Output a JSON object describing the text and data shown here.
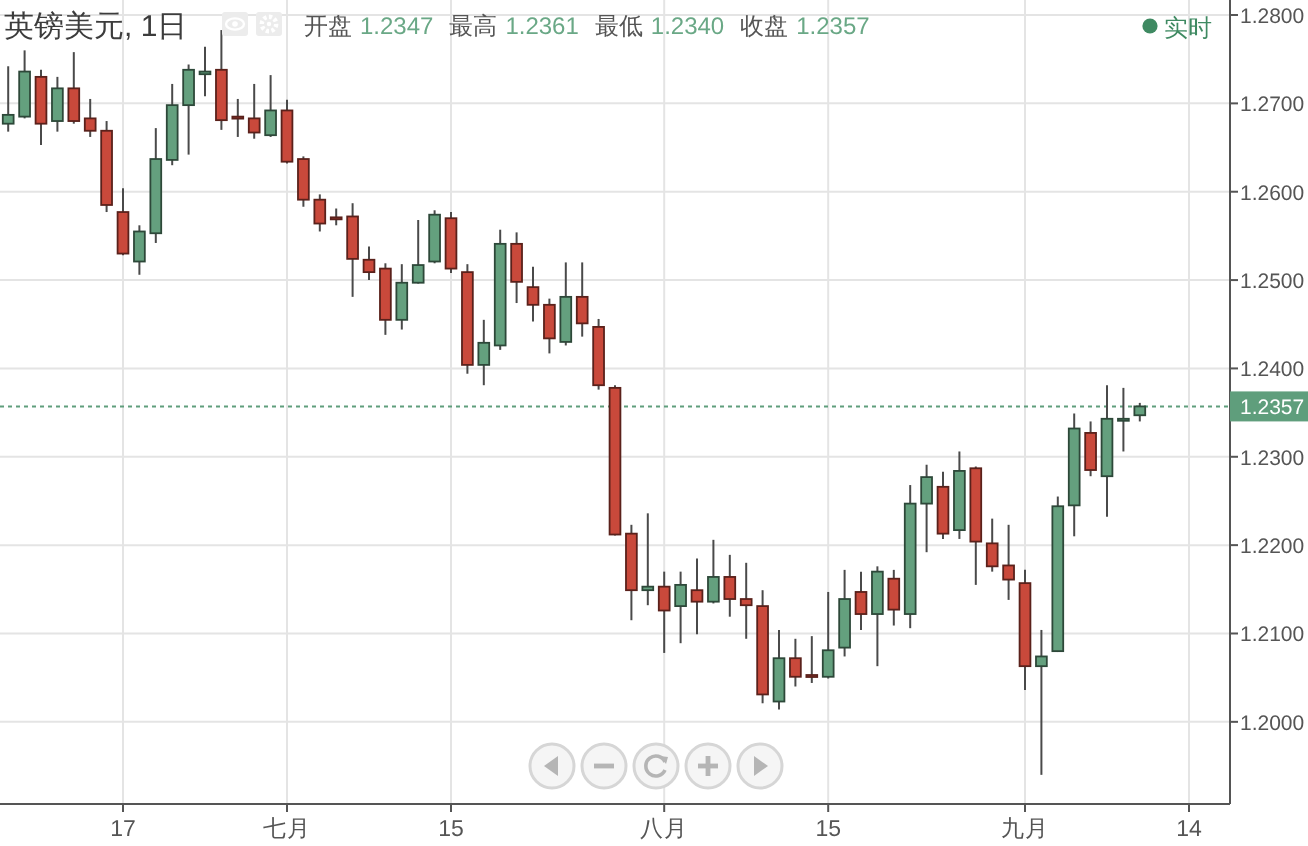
{
  "chart_data": {
    "type": "candlestick",
    "title": "英镑美元, 1日",
    "subtitle": "开盘 1.2347 最高 1.2361 最低 1.2340 收盘 1.2357",
    "annotations": [
      "实时"
    ],
    "categories": [
      null,
      null,
      null,
      null,
      null,
      null,
      null,
      "17",
      null,
      null,
      null,
      null,
      null,
      null,
      null,
      null,
      null,
      "七月",
      null,
      null,
      null,
      null,
      null,
      null,
      null,
      null,
      null,
      "15",
      null,
      null,
      null,
      null,
      null,
      null,
      null,
      null,
      null,
      null,
      null,
      null,
      "八月",
      null,
      null,
      null,
      null,
      null,
      null,
      null,
      null,
      null,
      "15",
      null,
      null,
      null,
      null,
      null,
      null,
      null,
      null,
      null,
      null,
      null,
      "九月",
      null,
      null,
      null,
      null,
      null,
      null,
      null,
      null,
      null,
      "14",
      null,
      null
    ],
    "ohlc": [
      [
        1.2677,
        1.2742,
        1.2668,
        1.2687
      ],
      [
        1.2685,
        1.276,
        1.2683,
        1.2736
      ],
      [
        1.273,
        1.2738,
        1.2653,
        1.2677
      ],
      [
        1.268,
        1.273,
        1.2668,
        1.2717
      ],
      [
        1.2717,
        1.2758,
        1.2677,
        1.268
      ],
      [
        1.2683,
        1.2705,
        1.2662,
        1.2669
      ],
      [
        1.2669,
        1.268,
        1.2577,
        1.2585
      ],
      [
        1.2577,
        1.2604,
        1.2528,
        1.253
      ],
      [
        1.2521,
        1.2562,
        1.2506,
        1.2555
      ],
      [
        1.2553,
        1.2672,
        1.2542,
        1.2637
      ],
      [
        1.2636,
        1.2722,
        1.263,
        1.2698
      ],
      [
        1.2698,
        1.2744,
        1.2642,
        1.2738
      ],
      [
        1.2733,
        1.2764,
        1.2708,
        1.2736
      ],
      [
        1.2738,
        1.2783,
        1.267,
        1.2681
      ],
      [
        1.2685,
        1.2705,
        1.2662,
        1.2683
      ],
      [
        1.2683,
        1.2722,
        1.266,
        1.2667
      ],
      [
        1.2664,
        1.2732,
        1.2662,
        1.2692
      ],
      [
        1.2692,
        1.2704,
        1.2632,
        1.2634
      ],
      [
        1.2637,
        1.264,
        1.2583,
        1.2591
      ],
      [
        1.2591,
        1.2597,
        1.2555,
        1.2564
      ],
      [
        1.2571,
        1.2581,
        1.2562,
        1.257
      ],
      [
        1.2572,
        1.2587,
        1.2481,
        1.2524
      ],
      [
        1.2523,
        1.2538,
        1.25,
        1.2509
      ],
      [
        1.2513,
        1.2519,
        1.2438,
        1.2455
      ],
      [
        1.2455,
        1.2518,
        1.2444,
        1.2497
      ],
      [
        1.2497,
        1.2568,
        1.2496,
        1.2517
      ],
      [
        1.2521,
        1.2579,
        1.2519,
        1.2574
      ],
      [
        1.257,
        1.2577,
        1.2508,
        1.2513
      ],
      [
        1.2509,
        1.2518,
        1.2394,
        1.2404
      ],
      [
        1.2404,
        1.2455,
        1.2381,
        1.2429
      ],
      [
        1.2426,
        1.2557,
        1.2421,
        1.2541
      ],
      [
        1.2541,
        1.2554,
        1.2474,
        1.2498
      ],
      [
        1.2492,
        1.2515,
        1.2453,
        1.2472
      ],
      [
        1.2472,
        1.2479,
        1.2417,
        1.2434
      ],
      [
        1.243,
        1.252,
        1.2426,
        1.2481
      ],
      [
        1.2481,
        1.252,
        1.2436,
        1.2451
      ],
      [
        1.2447,
        1.2456,
        1.2376,
        1.2381
      ],
      [
        1.2378,
        1.2381,
        1.2211,
        1.2212
      ],
      [
        1.2213,
        1.2223,
        1.2115,
        1.2149
      ],
      [
        1.2149,
        1.2236,
        1.2132,
        1.2153
      ],
      [
        1.2153,
        1.217,
        1.2078,
        1.2126
      ],
      [
        1.2131,
        1.217,
        1.2089,
        1.2155
      ],
      [
        1.2149,
        1.2185,
        1.2099,
        1.2136
      ],
      [
        1.2136,
        1.2206,
        1.2134,
        1.2164
      ],
      [
        1.2164,
        1.2189,
        1.2119,
        1.2139
      ],
      [
        1.2139,
        1.218,
        1.2094,
        1.2132
      ],
      [
        1.2131,
        1.2149,
        1.2021,
        1.2031
      ],
      [
        1.2023,
        1.2104,
        1.2014,
        1.2072
      ],
      [
        1.2072,
        1.2094,
        1.204,
        1.2051
      ],
      [
        1.2053,
        1.2097,
        1.2044,
        1.2052
      ],
      [
        1.2051,
        1.2147,
        1.2049,
        1.2081
      ],
      [
        1.2084,
        1.2172,
        1.2074,
        1.2139
      ],
      [
        1.2147,
        1.217,
        1.2104,
        1.2122
      ],
      [
        1.2122,
        1.2176,
        1.2063,
        1.217
      ],
      [
        1.2162,
        1.2172,
        1.2109,
        1.2127
      ],
      [
        1.2122,
        1.2268,
        1.2106,
        1.2247
      ],
      [
        1.2247,
        1.2291,
        1.2192,
        1.2277
      ],
      [
        1.2266,
        1.2283,
        1.2207,
        1.2213
      ],
      [
        1.2217,
        1.2306,
        1.2207,
        1.2284
      ],
      [
        1.2287,
        1.2289,
        1.2155,
        1.2204
      ],
      [
        1.2202,
        1.223,
        1.217,
        1.2176
      ],
      [
        1.2177,
        1.2223,
        1.2138,
        1.2161
      ],
      [
        1.2157,
        1.2172,
        1.2036,
        1.2063
      ],
      [
        1.2063,
        1.2104,
        1.194,
        1.2074
      ],
      [
        1.208,
        1.2255,
        1.2079,
        1.2244
      ],
      [
        1.2245,
        1.2349,
        1.221,
        1.2332
      ],
      [
        1.2327,
        1.234,
        1.2278,
        1.2285
      ],
      [
        1.2278,
        1.2381,
        1.2232,
        1.2343
      ],
      [
        1.2342,
        1.2378,
        1.2306,
        1.2343
      ],
      [
        1.2347,
        1.2361,
        1.234,
        1.2357
      ],
      null,
      null,
      null,
      null,
      null
    ],
    "colors": [
      "#64a07e",
      "#64a07e",
      "#c9493b",
      "#64a07e",
      "#c9493b",
      "#c9493b",
      "#c9493b",
      "#c9493b",
      "#64a07e",
      "#64a07e",
      "#64a07e",
      "#64a07e",
      "#64a07e",
      "#c9493b",
      "#c9493b",
      "#c9493b",
      "#64a07e",
      "#c9493b",
      "#c9493b",
      "#c9493b",
      "#c9493b",
      "#c9493b",
      "#c9493b",
      "#c9493b",
      "#64a07e",
      "#64a07e",
      "#64a07e",
      "#c9493b",
      "#c9493b",
      "#64a07e",
      "#64a07e",
      "#c9493b",
      "#c9493b",
      "#c9493b",
      "#64a07e",
      "#c9493b",
      "#c9493b",
      "#c9493b",
      "#c9493b",
      "#64a07e",
      "#c9493b",
      "#64a07e",
      "#c9493b",
      "#64a07e",
      "#c9493b",
      "#c9493b",
      "#c9493b",
      "#64a07e",
      "#c9493b",
      "#c9493b",
      "#64a07e",
      "#64a07e",
      "#c9493b",
      "#64a07e",
      "#c9493b",
      "#64a07e",
      "#64a07e",
      "#c9493b",
      "#64a07e",
      "#c9493b",
      "#c9493b",
      "#c9493b",
      "#c9493b",
      "#64a07e",
      "#64a07e",
      "#64a07e",
      "#c9493b",
      "#64a07e",
      "#64a07e",
      "#64a07e",
      null,
      null,
      null,
      null,
      null
    ],
    "ylim": [
      1.1907,
      1.2817
    ],
    "yticks": [
      {
        "value": 1.2,
        "label": "1.2000"
      },
      {
        "value": 1.21,
        "label": "1.2100"
      },
      {
        "value": 1.22,
        "label": "1.2200"
      },
      {
        "value": 1.23,
        "label": "1.2300"
      },
      {
        "value": 1.24,
        "label": "1.2400"
      },
      {
        "value": 1.25,
        "label": "1.2500"
      },
      {
        "value": 1.26,
        "label": "1.2600"
      },
      {
        "value": 1.27,
        "label": "1.2700"
      },
      {
        "value": 1.28,
        "label": "1.2800"
      }
    ],
    "ref_lines": [
      {
        "axis": "y",
        "value": 1.2357,
        "label": "1.2357",
        "color": "#5f9e7c",
        "line_style": "dotted"
      }
    ],
    "grid": true
  }
}
